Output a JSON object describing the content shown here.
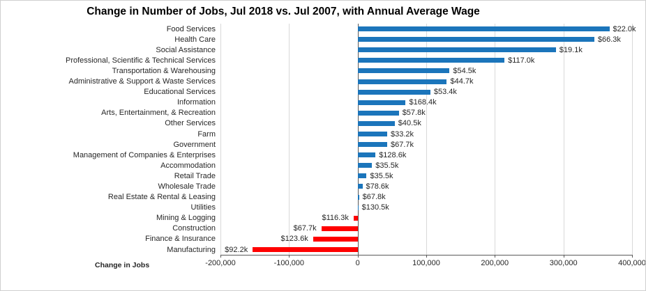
{
  "title": "Change in Number of Jobs, Jul 2018 vs. Jul 2007, with Annual Average Wage",
  "colors": {
    "bar_positive": "#1b75bb",
    "bar_negative": "#ff0000",
    "gridline": "#d9d9d9",
    "axis": "#595959",
    "text": "#262626",
    "frame_border": "#cfcfcf"
  },
  "chart_data": {
    "type": "bar",
    "orientation": "horizontal",
    "title": "Change in Number of Jobs, Jul 2018 vs. Jul 2007, with Annual Average Wage",
    "xlabel": "Change in Jobs",
    "ylabel": "",
    "xlim": [
      -200000,
      400000
    ],
    "xticks": [
      -200000,
      -100000,
      0,
      100000,
      200000,
      300000,
      400000
    ],
    "xtick_labels": [
      "-200,000",
      "-100,000",
      "0",
      "100,000",
      "200,000",
      "300,000",
      "400,000"
    ],
    "grid": true,
    "legend": false,
    "bar_color_positive": "#1b75bb",
    "bar_color_negative": "#ff0000",
    "data_label_note": "labels show annual average wage at end of each bar",
    "rows": [
      {
        "category": "Food Services",
        "change": 367000,
        "wage_label": "$22.0k"
      },
      {
        "category": "Health Care",
        "change": 345000,
        "wage_label": "$66.3k"
      },
      {
        "category": "Social Assistance",
        "change": 289000,
        "wage_label": "$19.1k"
      },
      {
        "category": "Professional, Scientific & Technical Services",
        "change": 214000,
        "wage_label": "$117.0k"
      },
      {
        "category": "Transportation & Warehousing",
        "change": 134000,
        "wage_label": "$54.5k"
      },
      {
        "category": "Administrative & Support & Waste Services",
        "change": 130000,
        "wage_label": "$44.7k"
      },
      {
        "category": "Educational Services",
        "change": 106000,
        "wage_label": "$53.4k"
      },
      {
        "category": "Information",
        "change": 70000,
        "wage_label": "$168.4k"
      },
      {
        "category": "Arts, Entertainment, & Recreation",
        "change": 60000,
        "wage_label": "$57.8k"
      },
      {
        "category": "Other Services",
        "change": 54000,
        "wage_label": "$40.5k"
      },
      {
        "category": "Farm",
        "change": 43000,
        "wage_label": "$33.2k"
      },
      {
        "category": "Government",
        "change": 43000,
        "wage_label": "$67.7k"
      },
      {
        "category": "Management of Companies & Enterprises",
        "change": 26000,
        "wage_label": "$128.6k"
      },
      {
        "category": "Accommodation",
        "change": 21000,
        "wage_label": "$35.5k"
      },
      {
        "category": "Retail Trade",
        "change": 13000,
        "wage_label": "$35.5k"
      },
      {
        "category": "Wholesale Trade",
        "change": 7000,
        "wage_label": "$78.6k"
      },
      {
        "category": "Real Estate & Rental & Leasing",
        "change": 2000,
        "wage_label": "$67.8k"
      },
      {
        "category": "Utilities",
        "change": 1000,
        "wage_label": "$130.5k"
      },
      {
        "category": "Mining & Logging",
        "change": -6000,
        "wage_label": "$116.3k"
      },
      {
        "category": "Construction",
        "change": -53000,
        "wage_label": "$67.7k"
      },
      {
        "category": "Finance & Insurance",
        "change": -65000,
        "wage_label": "$123.6k"
      },
      {
        "category": "Manufacturing",
        "change": -153000,
        "wage_label": "$92.2k"
      }
    ]
  }
}
